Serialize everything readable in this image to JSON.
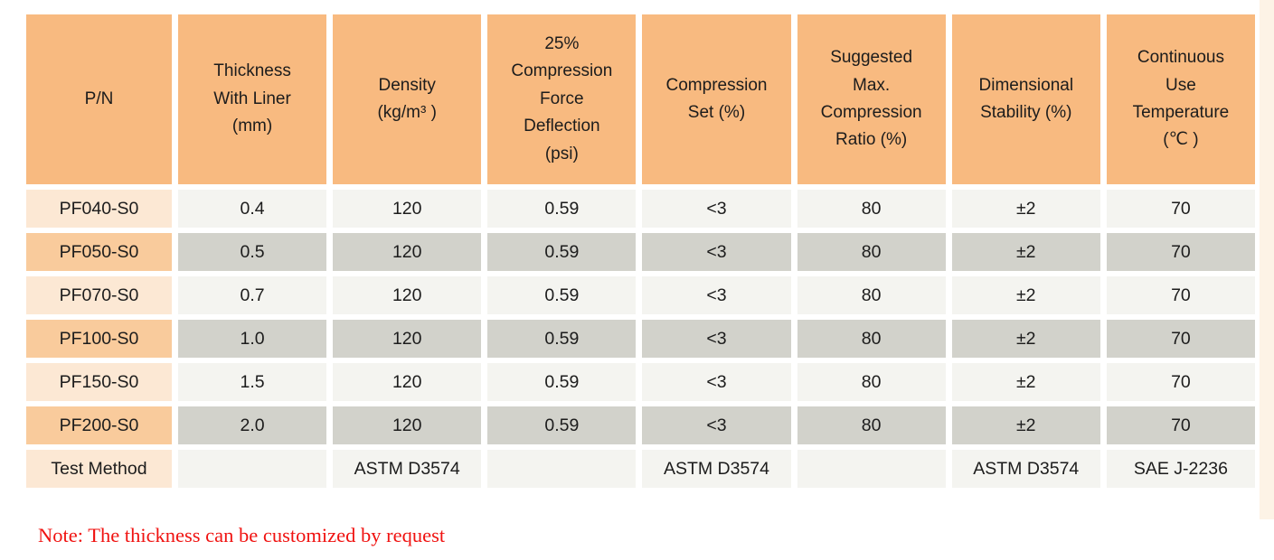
{
  "colors": {
    "header_bg": "#F8BA80",
    "pn_row_light": "#FCE8D4",
    "pn_row_dark": "#F9CB9C",
    "cell_light": "#F4F4F0",
    "cell_dark": "#D2D2CB",
    "text": "#1C1C1C",
    "note_red": "#F01311",
    "edge_strip": "#FBE9D2"
  },
  "table": {
    "headers": [
      "P/N",
      "Thickness\nWith Liner\n(mm)",
      "Density\n(kg/m³ )",
      "25%\nCompression\nForce\nDeflection\n(psi)",
      "Compression\nSet (%)",
      "Suggested\nMax.\nCompression\nRatio (%)",
      "Dimensional\nStability (%)",
      "Continuous\nUse\nTemperature\n(℃ )"
    ],
    "rows": [
      {
        "cells": [
          "PF040-S0",
          "0.4",
          "120",
          "0.59",
          "<3",
          "80",
          "±2",
          "70"
        ]
      },
      {
        "cells": [
          "PF050-S0",
          "0.5",
          "120",
          "0.59",
          "<3",
          "80",
          "±2",
          "70"
        ]
      },
      {
        "cells": [
          "PF070-S0",
          "0.7",
          "120",
          "0.59",
          "<3",
          "80",
          "±2",
          "70"
        ]
      },
      {
        "cells": [
          "PF100-S0",
          "1.0",
          "120",
          "0.59",
          "<3",
          "80",
          "±2",
          "70"
        ]
      },
      {
        "cells": [
          "PF150-S0",
          "1.5",
          "120",
          "0.59",
          "<3",
          "80",
          "±2",
          "70"
        ]
      },
      {
        "cells": [
          "PF200-S0",
          "2.0",
          "120",
          "0.59",
          "<3",
          "80",
          "±2",
          "70"
        ]
      },
      {
        "cells": [
          "Test Method",
          "",
          "ASTM D3574",
          "",
          "ASTM D3574",
          "",
          "ASTM D3574",
          "SAE J-2236"
        ]
      }
    ]
  },
  "note": "Note: The thickness can be customized by request"
}
